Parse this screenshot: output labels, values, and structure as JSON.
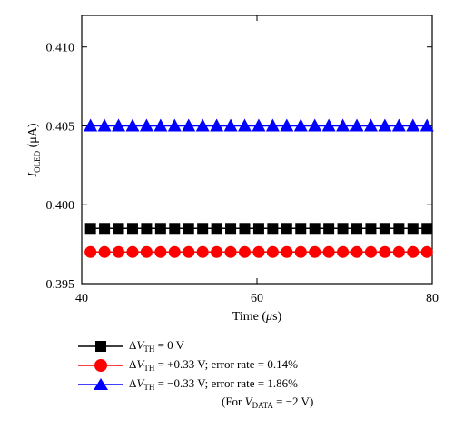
{
  "chart_data": {
    "type": "scatter",
    "xlabel": "Time (μs)",
    "ylabel": "I_OLED (μA)",
    "xlim": [
      40,
      80
    ],
    "ylim": [
      0.395,
      0.412
    ],
    "xticks": [
      "40",
      "60",
      "80"
    ],
    "yticks": [
      "0.395",
      "0.400",
      "0.405",
      "0.410"
    ],
    "ytick_values": [
      0.395,
      0.4,
      0.405,
      0.41
    ],
    "xtick_values": [
      40,
      60,
      80
    ],
    "grid": false,
    "legend_position": "bottom",
    "series": [
      {
        "name": "ΔV_TH = 0 V",
        "marker": "square",
        "color": "#000000",
        "x": [
          41,
          42.6,
          44.2,
          45.8,
          47.4,
          49,
          50.6,
          52.2,
          53.8,
          55.4,
          57,
          58.6,
          60.2,
          61.8,
          63.4,
          65,
          66.6,
          68.2,
          69.8,
          71.4,
          73,
          74.6,
          76.2,
          77.8,
          79.4
        ],
        "y": [
          0.3985,
          0.3985,
          0.3985,
          0.3985,
          0.3985,
          0.3985,
          0.3985,
          0.3985,
          0.3985,
          0.3985,
          0.3985,
          0.3985,
          0.3985,
          0.3985,
          0.3985,
          0.3985,
          0.3985,
          0.3985,
          0.3985,
          0.3985,
          0.3985,
          0.3985,
          0.3985,
          0.3985,
          0.3985
        ]
      },
      {
        "name": "ΔV_TH = +0.33 V; error rate = 0.14%",
        "marker": "circle",
        "color": "#ff0000",
        "x": [
          41,
          42.6,
          44.2,
          45.8,
          47.4,
          49,
          50.6,
          52.2,
          53.8,
          55.4,
          57,
          58.6,
          60.2,
          61.8,
          63.4,
          65,
          66.6,
          68.2,
          69.8,
          71.4,
          73,
          74.6,
          76.2,
          77.8,
          79.4
        ],
        "y": [
          0.397,
          0.397,
          0.397,
          0.397,
          0.397,
          0.397,
          0.397,
          0.397,
          0.397,
          0.397,
          0.397,
          0.397,
          0.397,
          0.397,
          0.397,
          0.397,
          0.397,
          0.397,
          0.397,
          0.397,
          0.397,
          0.397,
          0.397,
          0.397,
          0.397
        ]
      },
      {
        "name": "ΔV_TH = −0.33 V; error rate = 1.86%",
        "marker": "triangle",
        "color": "#0000ff",
        "x": [
          41,
          42.6,
          44.2,
          45.8,
          47.4,
          49,
          50.6,
          52.2,
          53.8,
          55.4,
          57,
          58.6,
          60.2,
          61.8,
          63.4,
          65,
          66.6,
          68.2,
          69.8,
          71.4,
          73,
          74.6,
          76.2,
          77.8,
          79.4
        ],
        "y": [
          0.405,
          0.405,
          0.405,
          0.405,
          0.405,
          0.405,
          0.405,
          0.405,
          0.405,
          0.405,
          0.405,
          0.405,
          0.405,
          0.405,
          0.405,
          0.405,
          0.405,
          0.405,
          0.405,
          0.405,
          0.405,
          0.405,
          0.405,
          0.405,
          0.405
        ]
      }
    ],
    "annotation": "(For V_DATA = −2 V)"
  },
  "legend": [
    {
      "symbol": "Δ",
      "var": "V",
      "sub": "TH",
      "rest": " = 0 V"
    },
    {
      "symbol": "Δ",
      "var": "V",
      "sub": "TH",
      "rest": " = +0.33 V; error rate = 0.14%"
    },
    {
      "symbol": "Δ",
      "var": "V",
      "sub": "TH",
      "rest": " = −0.33 V; error rate = 1.86%"
    }
  ],
  "note": {
    "pre": "(For ",
    "var": "V",
    "sub": "DATA",
    "rest": " = −2 V)"
  },
  "axis_text": {
    "xlabel_pre": "Time (",
    "xlabel_unit": "μ",
    "xlabel_post": "s)",
    "ylabel_var": "I",
    "ylabel_sub": "OLED",
    "ylabel_unit": " (μA)"
  }
}
